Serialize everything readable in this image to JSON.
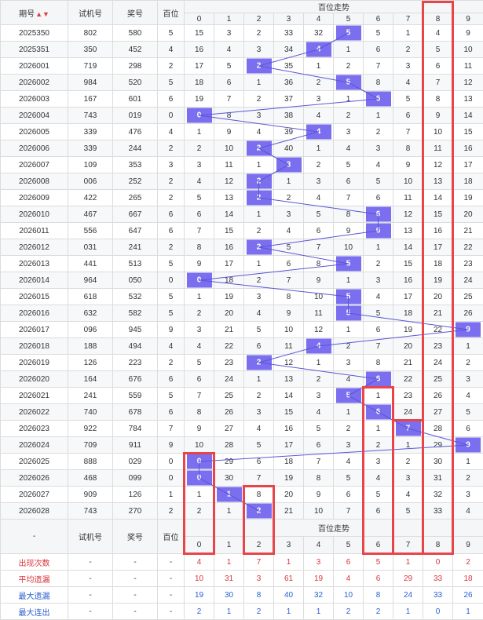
{
  "headers": {
    "issue": "期号",
    "sort_arrow": "▲▼",
    "test": "试机号",
    "prize": "奖号",
    "bai": "百位",
    "trend": "百位走势",
    "digits": [
      "0",
      "1",
      "2",
      "3",
      "4",
      "5",
      "6",
      "7",
      "8",
      "9"
    ]
  },
  "rows": [
    {
      "issue": "2025350",
      "test": "802",
      "prize": "580",
      "bai": "5",
      "cells": [
        "15",
        "3",
        "2",
        "33",
        "32",
        "5",
        "5",
        "1",
        "4",
        "9"
      ]
    },
    {
      "issue": "2025351",
      "test": "350",
      "prize": "452",
      "bai": "4",
      "cells": [
        "16",
        "4",
        "3",
        "34",
        "4",
        "1",
        "6",
        "2",
        "5",
        "10"
      ]
    },
    {
      "issue": "2026001",
      "test": "719",
      "prize": "298",
      "bai": "2",
      "cells": [
        "17",
        "5",
        "2",
        "35",
        "1",
        "2",
        "7",
        "3",
        "6",
        "11"
      ]
    },
    {
      "issue": "2026002",
      "test": "984",
      "prize": "520",
      "bai": "5",
      "cells": [
        "18",
        "6",
        "1",
        "36",
        "2",
        "5",
        "8",
        "4",
        "7",
        "12"
      ]
    },
    {
      "issue": "2026003",
      "test": "167",
      "prize": "601",
      "bai": "6",
      "cells": [
        "19",
        "7",
        "2",
        "37",
        "3",
        "1",
        "6",
        "5",
        "8",
        "13"
      ]
    },
    {
      "issue": "2026004",
      "test": "743",
      "prize": "019",
      "bai": "0",
      "cells": [
        "0",
        "8",
        "3",
        "38",
        "4",
        "2",
        "1",
        "6",
        "9",
        "14"
      ]
    },
    {
      "issue": "2026005",
      "test": "339",
      "prize": "476",
      "bai": "4",
      "cells": [
        "1",
        "9",
        "4",
        "39",
        "4",
        "3",
        "2",
        "7",
        "10",
        "15"
      ]
    },
    {
      "issue": "2026006",
      "test": "339",
      "prize": "244",
      "bai": "2",
      "cells": [
        "2",
        "10",
        "2",
        "40",
        "1",
        "4",
        "3",
        "8",
        "11",
        "16"
      ]
    },
    {
      "issue": "2026007",
      "test": "109",
      "prize": "353",
      "bai": "3",
      "cells": [
        "3",
        "11",
        "1",
        "3",
        "2",
        "5",
        "4",
        "9",
        "12",
        "17"
      ]
    },
    {
      "issue": "2026008",
      "test": "006",
      "prize": "252",
      "bai": "2",
      "cells": [
        "4",
        "12",
        "2",
        "1",
        "3",
        "6",
        "5",
        "10",
        "13",
        "18"
      ]
    },
    {
      "issue": "2026009",
      "test": "422",
      "prize": "265",
      "bai": "2",
      "cells": [
        "5",
        "13",
        "2",
        "2",
        "4",
        "7",
        "6",
        "11",
        "14",
        "19"
      ]
    },
    {
      "issue": "2026010",
      "test": "467",
      "prize": "667",
      "bai": "6",
      "cells": [
        "6",
        "14",
        "1",
        "3",
        "5",
        "8",
        "6",
        "12",
        "15",
        "20"
      ]
    },
    {
      "issue": "2026011",
      "test": "556",
      "prize": "647",
      "bai": "6",
      "cells": [
        "7",
        "15",
        "2",
        "4",
        "6",
        "9",
        "6",
        "13",
        "16",
        "21"
      ]
    },
    {
      "issue": "2026012",
      "test": "031",
      "prize": "241",
      "bai": "2",
      "cells": [
        "8",
        "16",
        "2",
        "5",
        "7",
        "10",
        "1",
        "14",
        "17",
        "22"
      ]
    },
    {
      "issue": "2026013",
      "test": "441",
      "prize": "513",
      "bai": "5",
      "cells": [
        "9",
        "17",
        "1",
        "6",
        "8",
        "5",
        "2",
        "15",
        "18",
        "23"
      ]
    },
    {
      "issue": "2026014",
      "test": "964",
      "prize": "050",
      "bai": "0",
      "cells": [
        "0",
        "18",
        "2",
        "7",
        "9",
        "1",
        "3",
        "16",
        "19",
        "24"
      ]
    },
    {
      "issue": "2026015",
      "test": "618",
      "prize": "532",
      "bai": "5",
      "cells": [
        "1",
        "19",
        "3",
        "8",
        "10",
        "5",
        "4",
        "17",
        "20",
        "25"
      ]
    },
    {
      "issue": "2026016",
      "test": "632",
      "prize": "582",
      "bai": "5",
      "cells": [
        "2",
        "20",
        "4",
        "9",
        "11",
        "5",
        "5",
        "18",
        "21",
        "26"
      ]
    },
    {
      "issue": "2026017",
      "test": "096",
      "prize": "945",
      "bai": "9",
      "cells": [
        "3",
        "21",
        "5",
        "10",
        "12",
        "1",
        "6",
        "19",
        "22",
        "9"
      ]
    },
    {
      "issue": "2026018",
      "test": "188",
      "prize": "494",
      "bai": "4",
      "cells": [
        "4",
        "22",
        "6",
        "11",
        "4",
        "2",
        "7",
        "20",
        "23",
        "1"
      ]
    },
    {
      "issue": "2026019",
      "test": "126",
      "prize": "223",
      "bai": "2",
      "cells": [
        "5",
        "23",
        "2",
        "12",
        "1",
        "3",
        "8",
        "21",
        "24",
        "2"
      ]
    },
    {
      "issue": "2026020",
      "test": "164",
      "prize": "676",
      "bai": "6",
      "cells": [
        "6",
        "24",
        "1",
        "13",
        "2",
        "4",
        "6",
        "22",
        "25",
        "3"
      ]
    },
    {
      "issue": "2026021",
      "test": "241",
      "prize": "559",
      "bai": "5",
      "cells": [
        "7",
        "25",
        "2",
        "14",
        "3",
        "5",
        "1",
        "23",
        "26",
        "4"
      ]
    },
    {
      "issue": "2026022",
      "test": "740",
      "prize": "678",
      "bai": "6",
      "cells": [
        "8",
        "26",
        "3",
        "15",
        "4",
        "1",
        "6",
        "24",
        "27",
        "5"
      ]
    },
    {
      "issue": "2026023",
      "test": "922",
      "prize": "784",
      "bai": "7",
      "cells": [
        "9",
        "27",
        "4",
        "16",
        "5",
        "2",
        "1",
        "7",
        "28",
        "6"
      ]
    },
    {
      "issue": "2026024",
      "test": "709",
      "prize": "911",
      "bai": "9",
      "cells": [
        "10",
        "28",
        "5",
        "17",
        "6",
        "3",
        "2",
        "1",
        "29",
        "9"
      ]
    },
    {
      "issue": "2026025",
      "test": "888",
      "prize": "029",
      "bai": "0",
      "cells": [
        "0",
        "29",
        "6",
        "18",
        "7",
        "4",
        "3",
        "2",
        "30",
        "1"
      ]
    },
    {
      "issue": "2026026",
      "test": "468",
      "prize": "099",
      "bai": "0",
      "cells": [
        "0",
        "30",
        "7",
        "19",
        "8",
        "5",
        "4",
        "3",
        "31",
        "2"
      ]
    },
    {
      "issue": "2026027",
      "test": "909",
      "prize": "126",
      "bai": "1",
      "cells": [
        "1",
        "1",
        "8",
        "20",
        "9",
        "6",
        "5",
        "4",
        "32",
        "3"
      ]
    },
    {
      "issue": "2026028",
      "test": "743",
      "prize": "270",
      "bai": "2",
      "cells": [
        "2",
        "1",
        "2",
        "21",
        "10",
        "7",
        "6",
        "5",
        "33",
        "4"
      ]
    }
  ],
  "footer": {
    "issue": "-",
    "test": "试机号",
    "prize": "奖号",
    "bai": "百位",
    "trend": "百位走势"
  },
  "stats": [
    {
      "label": "出现次数",
      "color": "#d9363e",
      "values": [
        "4",
        "1",
        "7",
        "1",
        "3",
        "6",
        "5",
        "1",
        "0",
        "2"
      ]
    },
    {
      "label": "平均遗漏",
      "color": "#d9363e",
      "values": [
        "10",
        "31",
        "3",
        "61",
        "19",
        "4",
        "6",
        "29",
        "33",
        "18"
      ]
    },
    {
      "label": "最大遗漏",
      "color": "#2b5fcf",
      "values": [
        "19",
        "30",
        "8",
        "40",
        "32",
        "10",
        "8",
        "24",
        "33",
        "26"
      ]
    },
    {
      "label": "最大连出",
      "color": "#2b5fcf",
      "values": [
        "2",
        "1",
        "2",
        "1",
        "1",
        "2",
        "2",
        "1",
        "0",
        "1"
      ]
    }
  ],
  "dash": "-",
  "colors": {
    "hit": "#7b6ff0",
    "highlight": "#e8454b",
    "line": "#5b55d6",
    "stat_red": "#d9363e",
    "stat_blue": "#2b5fcf"
  }
}
